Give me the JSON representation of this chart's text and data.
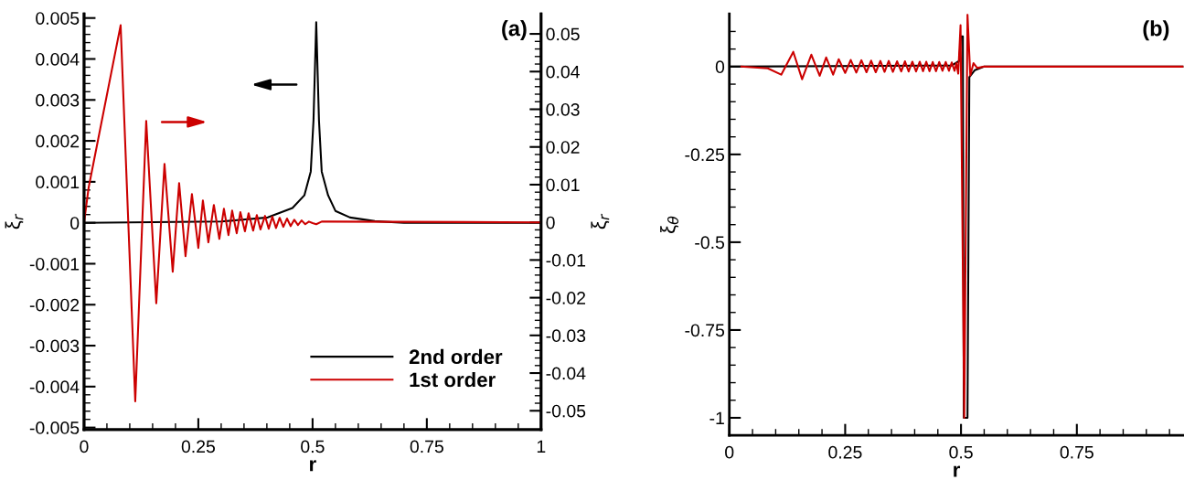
{
  "chart_data": [
    {
      "type": "line",
      "title": "(a)",
      "xlabel": "r",
      "ylabel": "ξ$_{r}$",
      "y2label": "ξ$_{r}$",
      "legend": "bottom right",
      "xlim": [
        0,
        1
      ],
      "ylim": [
        -0.00505,
        0.0051
      ],
      "y2lim": [
        -0.055,
        0.0553
      ],
      "xticks": [
        0,
        {
          "value": 0.05,
          "label": null
        },
        {
          "value": 0.1,
          "label": null
        },
        {
          "value": 0.15,
          "label": null
        },
        {
          "value": 0.2,
          "label": null
        },
        0.25,
        {
          "value": 0.3,
          "label": null
        },
        {
          "value": 0.35,
          "label": null
        },
        {
          "value": 0.4,
          "label": null
        },
        {
          "value": 0.45,
          "label": null
        },
        0.5,
        {
          "value": 0.55,
          "label": null
        },
        {
          "value": 0.6,
          "label": null
        },
        {
          "value": 0.65,
          "label": null
        },
        {
          "value": 0.7,
          "label": null
        },
        0.75,
        {
          "value": 0.8,
          "label": null
        },
        {
          "value": 0.85,
          "label": null
        },
        {
          "value": 0.9,
          "label": null
        },
        {
          "value": 0.95,
          "label": null
        },
        1
      ],
      "yticks": [
        -0.005,
        {
          "value": -0.0048,
          "label": null
        },
        {
          "value": -0.0046,
          "label": null
        },
        {
          "value": -0.0044,
          "label": null
        },
        {
          "value": -0.0042,
          "label": null
        },
        -0.004,
        {
          "value": -0.0038,
          "label": null
        },
        {
          "value": -0.0036,
          "label": null
        },
        {
          "value": -0.0034,
          "label": null
        },
        {
          "value": -0.0032,
          "label": null
        },
        -0.003,
        {
          "value": -0.0028,
          "label": null
        },
        {
          "value": -0.0026,
          "label": null
        },
        {
          "value": -0.0024,
          "label": null
        },
        {
          "value": -0.0022,
          "label": null
        },
        -0.002,
        {
          "value": -0.0018,
          "label": null
        },
        {
          "value": -0.0016,
          "label": null
        },
        {
          "value": -0.0014,
          "label": null
        },
        {
          "value": -0.0012,
          "label": null
        },
        -0.001,
        {
          "value": -0.0008,
          "label": null
        },
        {
          "value": -0.0006,
          "label": null
        },
        {
          "value": -0.0004,
          "label": null
        },
        {
          "value": -0.0002,
          "label": null
        },
        0,
        {
          "value": 0.0002,
          "label": null
        },
        {
          "value": 0.0004,
          "label": null
        },
        {
          "value": 0.0006,
          "label": null
        },
        {
          "value": 0.0008,
          "label": null
        },
        0.001,
        {
          "value": 0.0012,
          "label": null
        },
        {
          "value": 0.0014,
          "label": null
        },
        {
          "value": 0.0016,
          "label": null
        },
        {
          "value": 0.0018,
          "label": null
        },
        0.002,
        {
          "value": 0.0022,
          "label": null
        },
        {
          "value": 0.0024,
          "label": null
        },
        {
          "value": 0.0026,
          "label": null
        },
        {
          "value": 0.0028,
          "label": null
        },
        0.003,
        {
          "value": 0.0032,
          "label": null
        },
        {
          "value": 0.0034,
          "label": null
        },
        {
          "value": 0.0036,
          "label": null
        },
        {
          "value": 0.0038,
          "label": null
        },
        0.004,
        {
          "value": 0.0042,
          "label": null
        },
        {
          "value": 0.0044,
          "label": null
        },
        {
          "value": 0.0046,
          "label": null
        },
        {
          "value": 0.0048,
          "label": null
        },
        0.005
      ],
      "y2ticks": [
        -0.05,
        {
          "value": -0.048,
          "label": null
        },
        {
          "value": -0.046,
          "label": null
        },
        {
          "value": -0.044,
          "label": null
        },
        {
          "value": -0.042,
          "label": null
        },
        -0.04,
        {
          "value": -0.038,
          "label": null
        },
        {
          "value": -0.036,
          "label": null
        },
        {
          "value": -0.034,
          "label": null
        },
        {
          "value": -0.032,
          "label": null
        },
        -0.03,
        {
          "value": -0.028,
          "label": null
        },
        {
          "value": -0.026,
          "label": null
        },
        {
          "value": -0.024,
          "label": null
        },
        {
          "value": -0.022,
          "label": null
        },
        -0.02,
        {
          "value": -0.018,
          "label": null
        },
        {
          "value": -0.016,
          "label": null
        },
        {
          "value": -0.014,
          "label": null
        },
        {
          "value": -0.012,
          "label": null
        },
        -0.01,
        {
          "value": -0.008,
          "label": null
        },
        {
          "value": -0.006,
          "label": null
        },
        {
          "value": -0.004,
          "label": null
        },
        {
          "value": -0.002,
          "label": null
        },
        0,
        {
          "value": 0.002,
          "label": null
        },
        {
          "value": 0.004,
          "label": null
        },
        {
          "value": 0.006,
          "label": null
        },
        {
          "value": 0.008,
          "label": null
        },
        0.01,
        {
          "value": 0.012,
          "label": null
        },
        {
          "value": 0.014,
          "label": null
        },
        {
          "value": 0.016,
          "label": null
        },
        {
          "value": 0.018,
          "label": null
        },
        0.02,
        {
          "value": 0.022,
          "label": null
        },
        {
          "value": 0.024,
          "label": null
        },
        {
          "value": 0.026,
          "label": null
        },
        {
          "value": 0.028,
          "label": null
        },
        0.03,
        {
          "value": 0.032,
          "label": null
        },
        {
          "value": 0.034,
          "label": null
        },
        {
          "value": 0.036,
          "label": null
        },
        {
          "value": 0.038,
          "label": null
        },
        0.04,
        {
          "value": 0.042,
          "label": null
        },
        {
          "value": 0.044,
          "label": null
        },
        {
          "value": 0.046,
          "label": null
        },
        {
          "value": 0.048,
          "label": null
        },
        0.05
      ],
      "series": [
        {
          "name": "2nd order",
          "color": "#000000",
          "x": [
            0,
            0.3,
            0.402,
            0.456,
            0.482,
            0.496,
            0.502,
            0.508,
            0.514,
            0.52,
            0.534,
            0.55,
            0.582,
            0.636,
            0.7,
            1
          ],
          "values": [
            0,
            3e-05,
            0.00013,
            0.00036,
            0.00067,
            0.00125,
            0.0025,
            0.0049,
            0.0025,
            0.00125,
            0.00067,
            0.00029,
            0.00013,
            4e-05,
            0,
            0
          ]
        },
        {
          "name": "1st order",
          "color": "#cc0000",
          "axis": "y2",
          "x": [
            0,
            0.01,
            0.08,
            0.112,
            0.136,
            0.158,
            0.176,
            0.194,
            0.208,
            0.222,
            0.236,
            0.25,
            0.26,
            0.272,
            0.284,
            0.296,
            0.306,
            0.316,
            0.324,
            0.334,
            0.342,
            0.352,
            0.36,
            0.37,
            0.378,
            0.386,
            0.396,
            0.404,
            0.412,
            0.42,
            0.428,
            0.436,
            0.444,
            0.452,
            0.46,
            0.468,
            0.476,
            0.484,
            0.492,
            0.5,
            0.508,
            0.52,
            0.536,
            1
          ],
          "values": [
            0,
            0.0092,
            0.0523,
            -0.0475,
            0.0269,
            -0.0215,
            0.0155,
            -0.0131,
            0.0104,
            -0.009,
            0.0075,
            -0.0068,
            0.0058,
            -0.0053,
            0.0046,
            -0.0044,
            0.0036,
            -0.0034,
            0.0031,
            -0.0029,
            0.0027,
            -0.0024,
            0.0024,
            -0.0022,
            0.0019,
            -0.0019,
            0.0017,
            -0.0017,
            0.0015,
            -0.0015,
            0.0012,
            -0.0012,
            0.001,
            -0.001,
            0.0007,
            -0.0007,
            0.0005,
            -0.0005,
            0.0002,
            -0.0002,
            -0.0005,
            0.0002,
            0.0002,
            0
          ]
        }
      ]
    },
    {
      "type": "line",
      "title": "(b)",
      "xlabel": "r",
      "ylabel": "ξ$_{θ}$",
      "xlim": [
        0,
        0.98
      ],
      "ylim": [
        -1.05,
        0.15
      ],
      "xticks": [
        0,
        {
          "value": 0.05,
          "label": null
        },
        {
          "value": 0.1,
          "label": null
        },
        {
          "value": 0.15,
          "label": null
        },
        {
          "value": 0.2,
          "label": null
        },
        0.25,
        {
          "value": 0.3,
          "label": null
        },
        {
          "value": 0.35,
          "label": null
        },
        {
          "value": 0.4,
          "label": null
        },
        {
          "value": 0.45,
          "label": null
        },
        0.5,
        {
          "value": 0.55,
          "label": null
        },
        {
          "value": 0.6,
          "label": null
        },
        {
          "value": 0.65,
          "label": null
        },
        {
          "value": 0.7,
          "label": null
        },
        0.75,
        {
          "value": 0.8,
          "label": null
        },
        {
          "value": 0.85,
          "label": null
        },
        {
          "value": 0.9,
          "label": null
        },
        {
          "value": 0.95,
          "label": null
        }
      ],
      "yticks": [
        -1,
        {
          "value": -0.95,
          "label": null
        },
        {
          "value": -0.9,
          "label": null
        },
        {
          "value": -0.85,
          "label": null
        },
        {
          "value": -0.8,
          "label": null
        },
        -0.75,
        {
          "value": -0.7,
          "label": null
        },
        {
          "value": -0.65,
          "label": null
        },
        {
          "value": -0.6,
          "label": null
        },
        {
          "value": -0.55,
          "label": null
        },
        -0.5,
        {
          "value": -0.45,
          "label": null
        },
        {
          "value": -0.4,
          "label": null
        },
        {
          "value": -0.35,
          "label": null
        },
        {
          "value": -0.3,
          "label": null
        },
        -0.25,
        {
          "value": -0.2,
          "label": null
        },
        {
          "value": -0.15,
          "label": null
        },
        {
          "value": -0.1,
          "label": null
        },
        {
          "value": -0.05,
          "label": null
        },
        0,
        {
          "value": 0.05,
          "label": null
        },
        {
          "value": 0.1,
          "label": null
        }
      ],
      "series": [
        {
          "color": "#000000",
          "x": [
            0,
            0.48,
            0.496,
            0.5,
            0.504,
            0.506,
            0.514,
            0.518,
            0.53,
            0.55,
            0.98
          ],
          "values": [
            0,
            0.003,
            0.016,
            0.086,
            0.086,
            -1,
            -1,
            -0.03,
            -0.01,
            0,
            0
          ]
        },
        {
          "color": "#cc0000",
          "x": [
            0.026,
            0.083,
            0.112,
            0.138,
            0.157,
            0.177,
            0.195,
            0.209,
            0.224,
            0.236,
            0.25,
            0.262,
            0.274,
            0.285,
            0.296,
            0.306,
            0.316,
            0.326,
            0.335,
            0.344,
            0.353,
            0.362,
            0.371,
            0.379,
            0.387,
            0.395,
            0.403,
            0.411,
            0.418,
            0.425,
            0.432,
            0.439,
            0.446,
            0.453,
            0.46,
            0.467,
            0.474,
            0.48,
            0.486,
            0.49,
            0.494,
            0.499,
            0.507,
            0.514,
            0.52,
            0.527,
            0.535,
            0.55,
            0.98
          ],
          "values": [
            0,
            -0.005,
            -0.023,
            0.042,
            -0.036,
            0.034,
            -0.026,
            0.026,
            -0.023,
            0.021,
            -0.018,
            0.019,
            -0.017,
            0.018,
            -0.016,
            0.017,
            -0.016,
            0.016,
            -0.015,
            0.016,
            -0.015,
            0.015,
            -0.014,
            0.015,
            -0.014,
            0.014,
            -0.014,
            0.014,
            -0.013,
            0.014,
            -0.013,
            0.013,
            -0.013,
            0.013,
            -0.012,
            0.013,
            -0.012,
            0.012,
            -0.012,
            0.01,
            -0.02,
            0.118,
            -1,
            0.148,
            -0.025,
            0.01,
            -0.004,
            0,
            0
          ]
        }
      ]
    }
  ]
}
